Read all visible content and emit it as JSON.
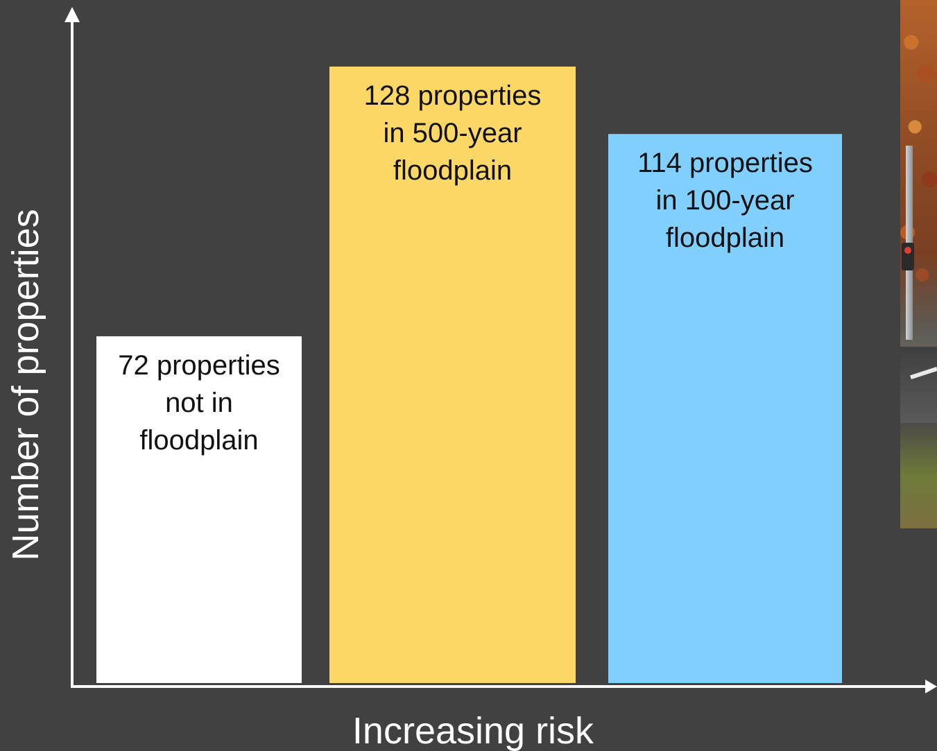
{
  "chart_data": {
    "type": "bar",
    "title": "",
    "xlabel": "Increasing risk",
    "ylabel": "Number of properties",
    "categories": [
      "not in floodplain",
      "500-year floodplain",
      "100-year floodplain"
    ],
    "values": [
      72,
      128,
      114
    ],
    "bar_labels": [
      [
        "72 properties",
        "not in",
        "floodplain"
      ],
      [
        "128 properties",
        "in 500-year",
        "floodplain"
      ],
      [
        "114 properties",
        "in 100-year",
        "floodplain"
      ]
    ],
    "ylim": [
      0,
      128
    ],
    "grid": false,
    "legend": "none",
    "colors": [
      "#ffffff",
      "#fed866",
      "#80cfff"
    ]
  },
  "theme": {
    "background": "#414141",
    "axis_color": "#ffffff"
  },
  "photo": {
    "icon": "street-photo-fragment"
  }
}
